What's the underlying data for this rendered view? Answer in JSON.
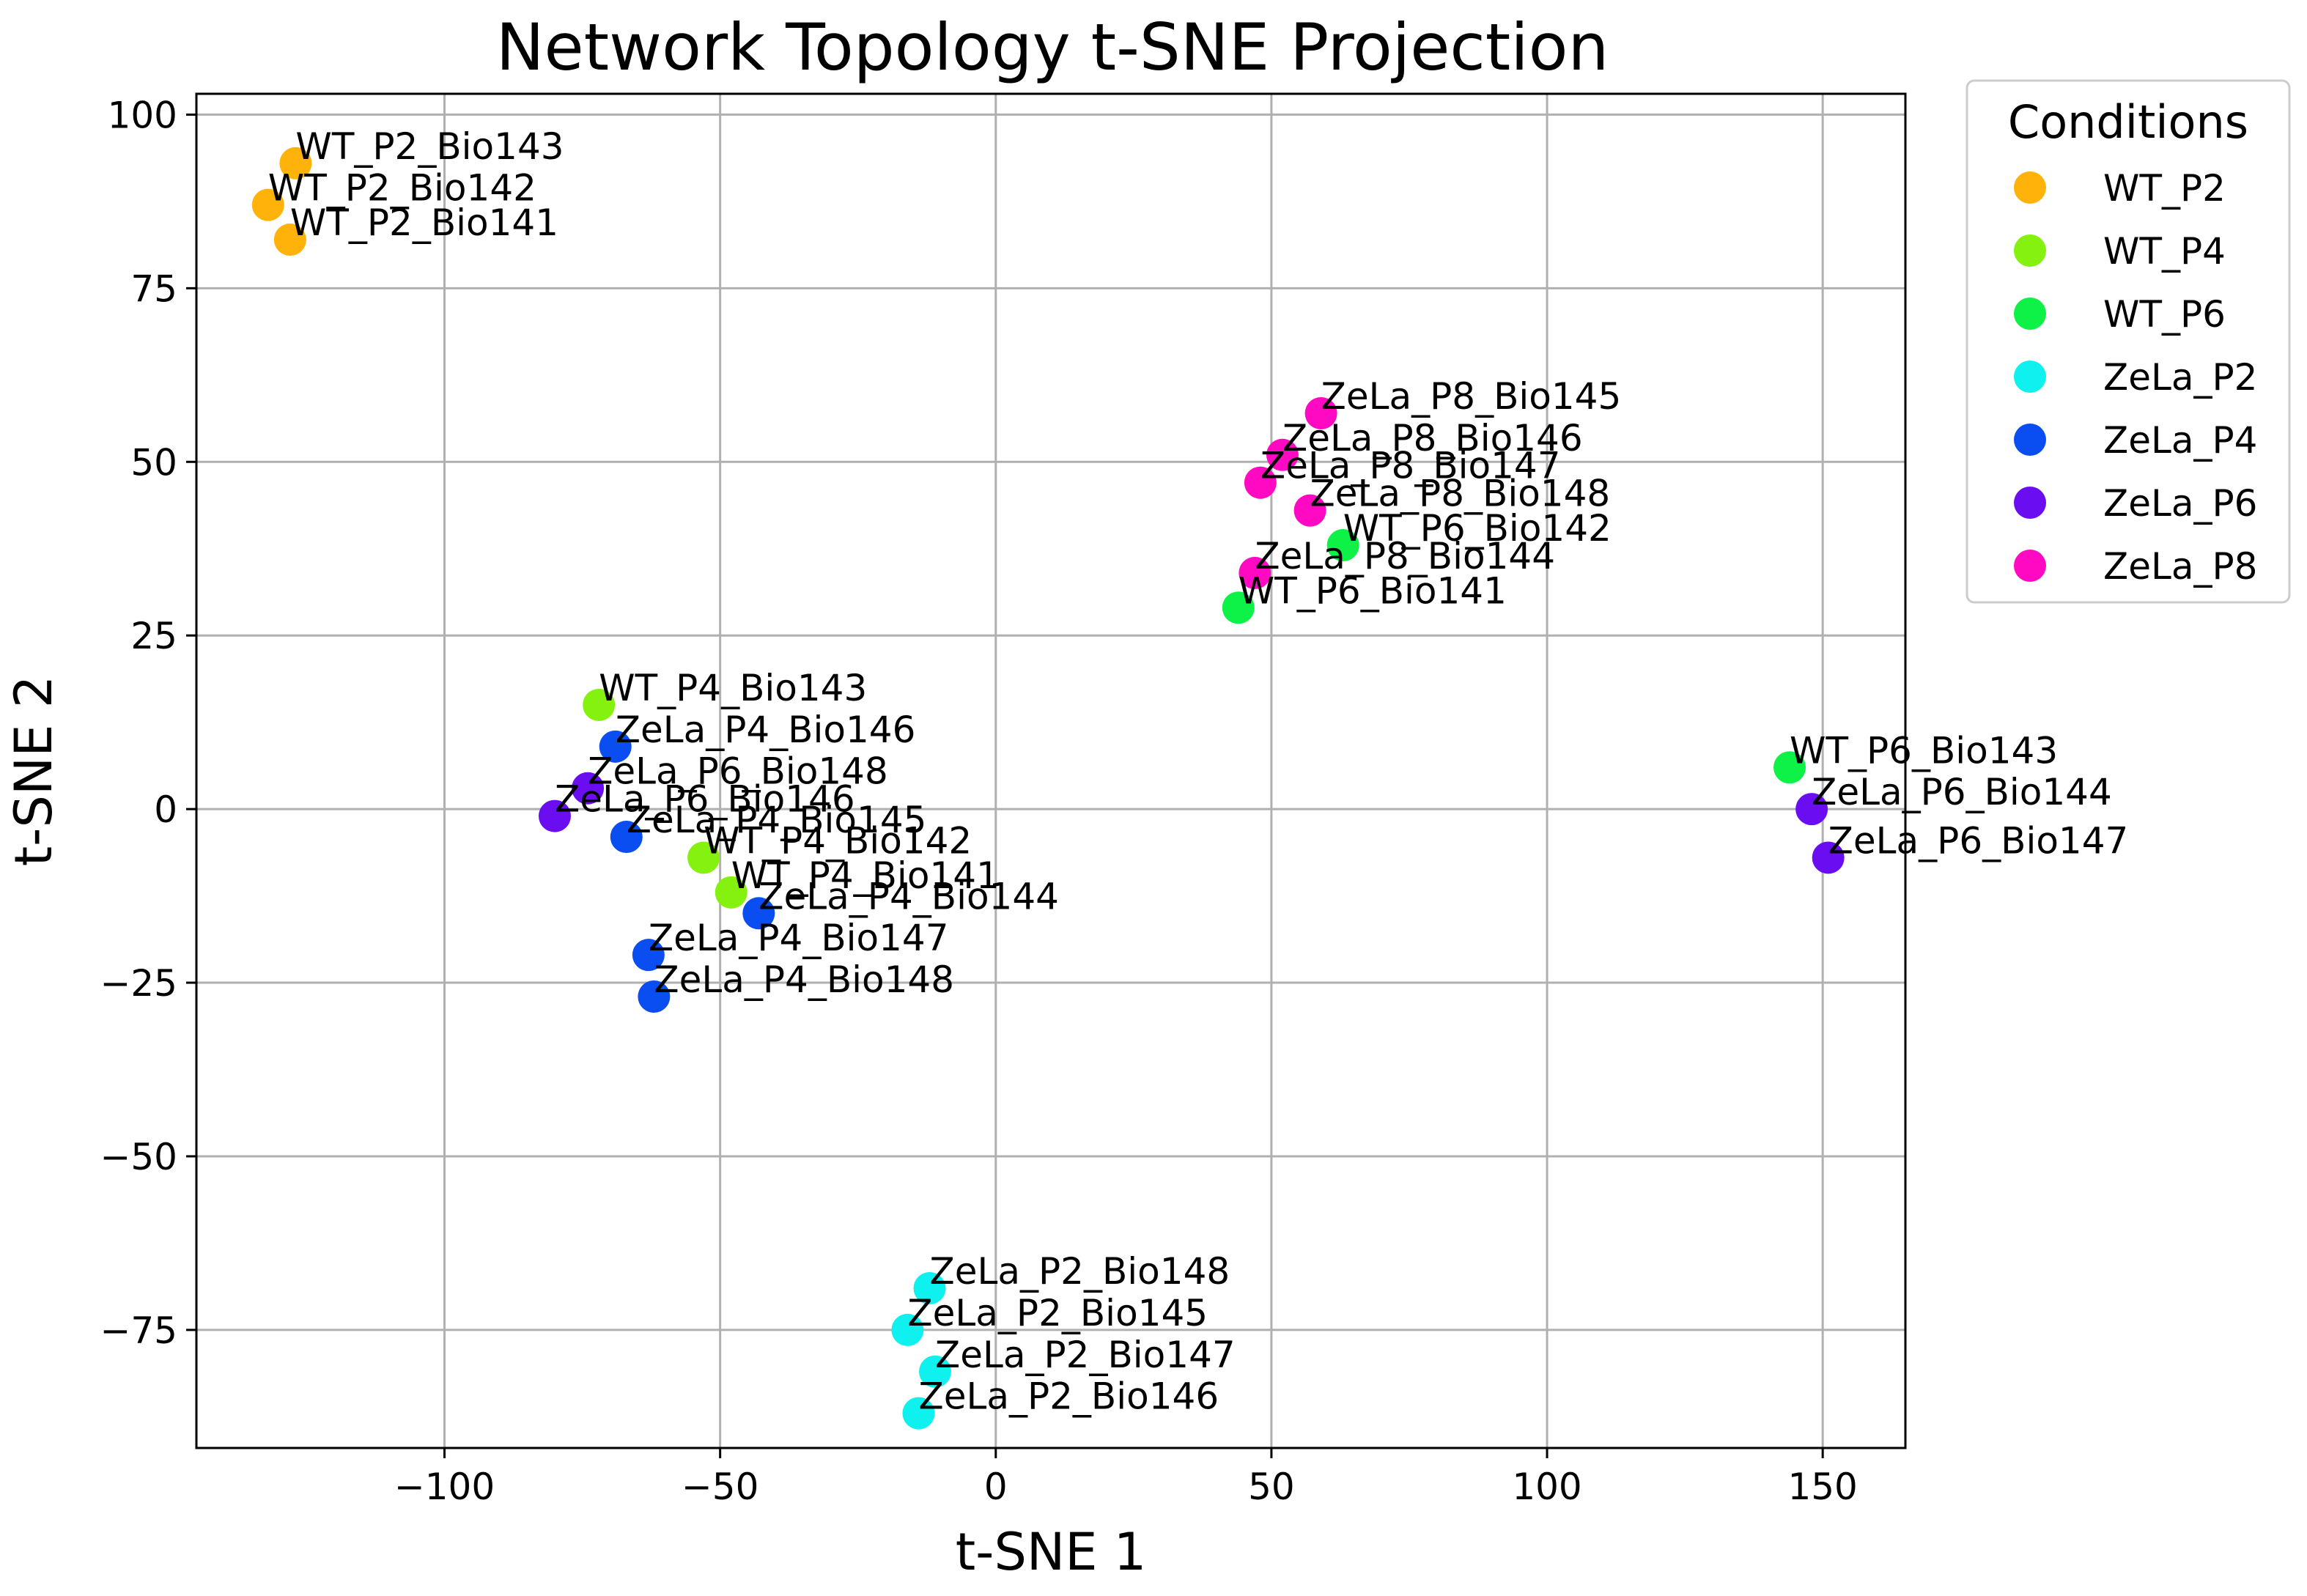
{
  "chart_data": {
    "type": "scatter",
    "title": "Network Topology t-SNE Projection",
    "xlabel": "t-SNE 1",
    "ylabel": "t-SNE 2",
    "xlim": [
      -145,
      165
    ],
    "ylim": [
      -92,
      103
    ],
    "xticks": [
      -100,
      -50,
      0,
      50,
      100,
      150
    ],
    "yticks": [
      -75,
      -50,
      -25,
      0,
      25,
      50,
      75,
      100
    ],
    "grid": true,
    "legend": {
      "title": "Conditions",
      "position": "outside-top-right"
    },
    "series": [
      {
        "name": "WT_P2",
        "color": "#FFB20A",
        "points": [
          {
            "x": -127,
            "y": 93,
            "label": "WT_P2_Bio143"
          },
          {
            "x": -132,
            "y": 87,
            "label": "WT_P2_Bio142"
          },
          {
            "x": -128,
            "y": 82,
            "label": "WT_P2_Bio141"
          }
        ]
      },
      {
        "name": "WT_P4",
        "color": "#84F10E",
        "points": [
          {
            "x": -72,
            "y": 15,
            "label": "WT_P4_Bio143"
          },
          {
            "x": -53,
            "y": -7,
            "label": "WT_P4_Bio142"
          },
          {
            "x": -48,
            "y": -12,
            "label": "WT_P4_Bio141"
          }
        ]
      },
      {
        "name": "WT_P6",
        "color": "#0EF146",
        "points": [
          {
            "x": 63,
            "y": 38,
            "label": "WT_P6_Bio142"
          },
          {
            "x": 44,
            "y": 29,
            "label": "WT_P6_Bio141"
          },
          {
            "x": 144,
            "y": 6,
            "label": "WT_P6_Bio143"
          }
        ]
      },
      {
        "name": "ZeLa_P2",
        "color": "#0EF1EE",
        "points": [
          {
            "x": -12,
            "y": -69,
            "label": "ZeLa_P2_Bio148"
          },
          {
            "x": -16,
            "y": -75,
            "label": "ZeLa_P2_Bio145"
          },
          {
            "x": -11,
            "y": -81,
            "label": "ZeLa_P2_Bio147"
          },
          {
            "x": -14,
            "y": -87,
            "label": "ZeLa_P2_Bio146"
          }
        ]
      },
      {
        "name": "ZeLa_P4",
        "color": "#0A4EF1",
        "points": [
          {
            "x": -69,
            "y": 9,
            "label": "ZeLa_P4_Bio146"
          },
          {
            "x": -67,
            "y": -4,
            "label": "ZeLa_P4_Bio145"
          },
          {
            "x": -43,
            "y": -15,
            "label": "ZeLa_P4_Bio144"
          },
          {
            "x": -63,
            "y": -21,
            "label": "ZeLa_P4_Bio147"
          },
          {
            "x": -62,
            "y": -27,
            "label": "ZeLa_P4_Bio148"
          }
        ]
      },
      {
        "name": "ZeLa_P6",
        "color": "#6A0EF1",
        "points": [
          {
            "x": -74,
            "y": 3,
            "label": "ZeLa_P6_Bio148"
          },
          {
            "x": -80,
            "y": -1,
            "label": "ZeLa_P6_Bio146"
          },
          {
            "x": 148,
            "y": 0,
            "label": "ZeLa_P6_Bio144"
          },
          {
            "x": 151,
            "y": -7,
            "label": "ZeLa_P6_Bio147"
          }
        ]
      },
      {
        "name": "ZeLa_P8",
        "color": "#FF0AC2",
        "points": [
          {
            "x": 59,
            "y": 57,
            "label": "ZeLa_P8_Bio145"
          },
          {
            "x": 52,
            "y": 51,
            "label": "ZeLa_P8_Bio146"
          },
          {
            "x": 48,
            "y": 47,
            "label": "ZeLa_P8_Bio147"
          },
          {
            "x": 57,
            "y": 43,
            "label": "ZeLa_P8_Bio148"
          },
          {
            "x": 47,
            "y": 34,
            "label": "ZeLa_P8_Bio144"
          }
        ]
      }
    ]
  }
}
